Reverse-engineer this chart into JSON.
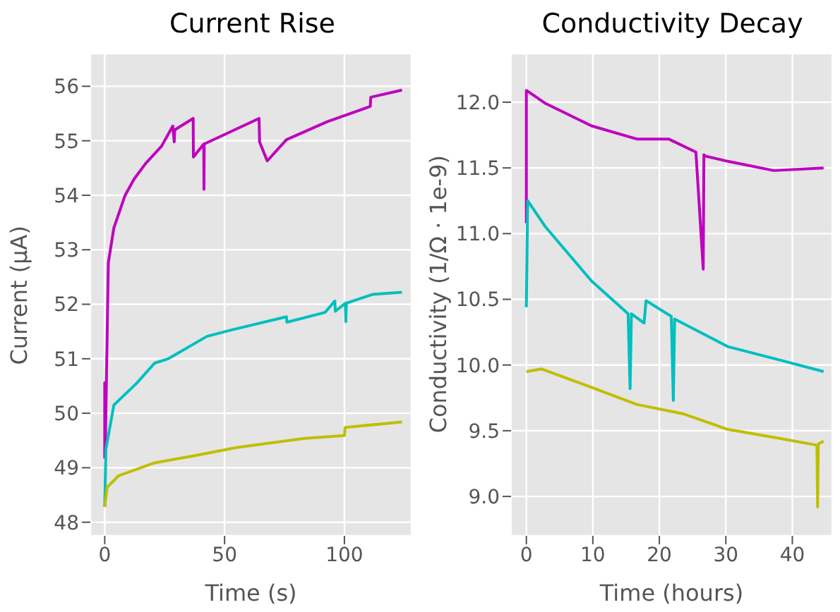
{
  "chart_data": [
    {
      "type": "line",
      "title": "Current Rise",
      "xlabel": "Time (s)",
      "ylabel": "Current (μA)",
      "xlim": [
        -6,
        128
      ],
      "ylim": [
        47.75,
        56.6
      ],
      "xticks": [
        0,
        50,
        100
      ],
      "yticks": [
        48,
        49,
        50,
        51,
        52,
        53,
        54,
        55,
        56
      ],
      "grid": true,
      "series": [
        {
          "color": "#bf00bf",
          "x": [
            0,
            0,
            0.3,
            1.5,
            3.8,
            8.5,
            12.3,
            17,
            23.7,
            28.4,
            29,
            29.2,
            36.9,
            37,
            41.3,
            41.4,
            41.5,
            64.4,
            64.6,
            67.8,
            75.8,
            92.8,
            110.8,
            111,
            124
          ],
          "values": [
            49.17,
            50.56,
            49.5,
            52.76,
            53.4,
            54.0,
            54.3,
            54.58,
            54.9,
            55.27,
            54.98,
            55.2,
            55.41,
            54.7,
            54.94,
            54.11,
            54.94,
            55.41,
            54.98,
            54.63,
            55.02,
            55.35,
            55.63,
            55.8,
            55.93
          ]
        },
        {
          "color": "#00bfbf",
          "x": [
            0,
            0.5,
            3.8,
            7.6,
            13.3,
            20.8,
            26.5,
            42.6,
            53,
            75.8,
            76,
            91.9,
            96,
            96.2,
            100.4,
            100.6,
            100.8,
            111.7,
            124
          ],
          "values": [
            48.28,
            49.34,
            50.15,
            50.31,
            50.55,
            50.92,
            51.0,
            51.41,
            51.53,
            51.77,
            51.67,
            51.85,
            52.06,
            51.87,
            52.02,
            51.68,
            52.02,
            52.18,
            52.22
          ]
        },
        {
          "color": "#bfbf00",
          "x": [
            0,
            1,
            5.7,
            20.8,
            36,
            55,
            83.3,
            100,
            100.3,
            124
          ],
          "values": [
            48.28,
            48.64,
            48.85,
            49.09,
            49.21,
            49.37,
            49.54,
            49.59,
            49.74,
            49.84
          ]
        }
      ]
    },
    {
      "type": "line",
      "title": "Conductivity Decay",
      "xlabel": "Time (hours)",
      "ylabel": "Conductivity (1/Ω · 1e-9)",
      "xlim": [
        -2.3,
        46
      ],
      "ylim": [
        8.7,
        12.37
      ],
      "xticks": [
        0,
        10,
        20,
        30,
        40
      ],
      "yticks": [
        {
          "value": 9,
          "label": "9.0"
        },
        9.5,
        {
          "value": 10,
          "label": "10.0"
        },
        10.5,
        {
          "value": 11,
          "label": "11.0"
        },
        11.5,
        {
          "value": 12,
          "label": "12.0"
        }
      ],
      "grid": true,
      "series": [
        {
          "color": "#bf00bf",
          "x": [
            0,
            0,
            2.9,
            9.8,
            16.6,
            21.4,
            25.5,
            26.6,
            26.7,
            26.9,
            30.3,
            37.2,
            44.7
          ],
          "values": [
            11.08,
            12.09,
            11.99,
            11.82,
            11.72,
            11.72,
            11.62,
            10.73,
            11.6,
            11.59,
            11.55,
            11.48,
            11.5
          ]
        },
        {
          "color": "#00bfbf",
          "x": [
            0,
            0.2,
            2.9,
            9.8,
            15.3,
            15.6,
            15.8,
            17.7,
            18,
            21.8,
            22.1,
            22.3,
            30.3,
            37.2,
            44.7
          ],
          "values": [
            10.44,
            11.25,
            11.05,
            10.64,
            10.39,
            9.82,
            10.39,
            10.32,
            10.49,
            10.37,
            9.73,
            10.35,
            10.14,
            10.05,
            9.95
          ]
        },
        {
          "color": "#bfbf00",
          "x": [
            0,
            2.3,
            9.8,
            16.6,
            23.5,
            30.3,
            37.2,
            43.7,
            43.8,
            43.9,
            44.7
          ],
          "values": [
            9.95,
            9.97,
            9.83,
            9.7,
            9.63,
            9.51,
            9.45,
            9.39,
            8.92,
            9.4,
            9.42
          ]
        }
      ]
    }
  ]
}
